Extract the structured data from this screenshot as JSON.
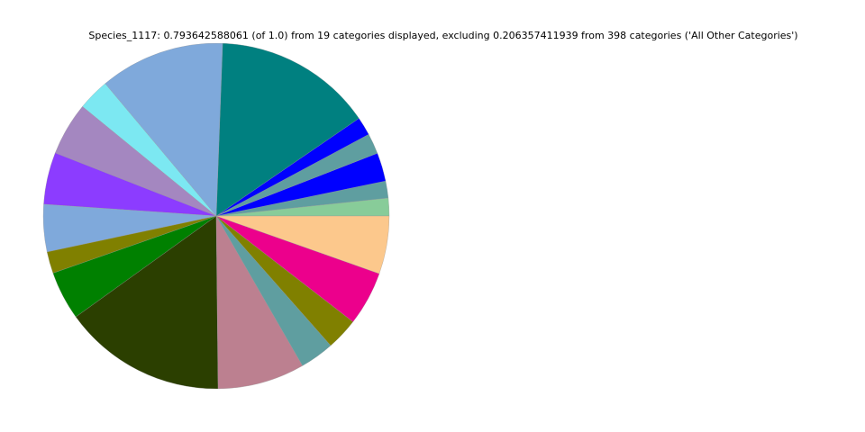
{
  "chart_data": {
    "type": "pie",
    "title": "Species_1117: 0.793642588061 (of 1.0) from 19 categories displayed, excluding 0.206357411939 from 398 categories ('All Other Categories')",
    "values": [
      0.0132,
      0.0126,
      0.0212,
      0.0152,
      0.0137,
      0.1179,
      0.0928,
      0.0236,
      0.0395,
      0.0386,
      0.0351,
      0.0161,
      0.0362,
      0.121,
      0.0646,
      0.0254,
      0.0238,
      0.0403,
      0.043
    ],
    "colors": [
      "#88cc99",
      "#5f9ea0",
      "#0000ff",
      "#5f9ea0",
      "#0000ff",
      "#008080",
      "#7fa9db",
      "#7ce8f2",
      "#a487c0",
      "#8c3cff",
      "#7fa9db",
      "#808000",
      "#008000",
      "#2b3f00",
      "#bc8090",
      "#5f9ea0",
      "#808000",
      "#ec008c",
      "#fcc88c"
    ]
  }
}
